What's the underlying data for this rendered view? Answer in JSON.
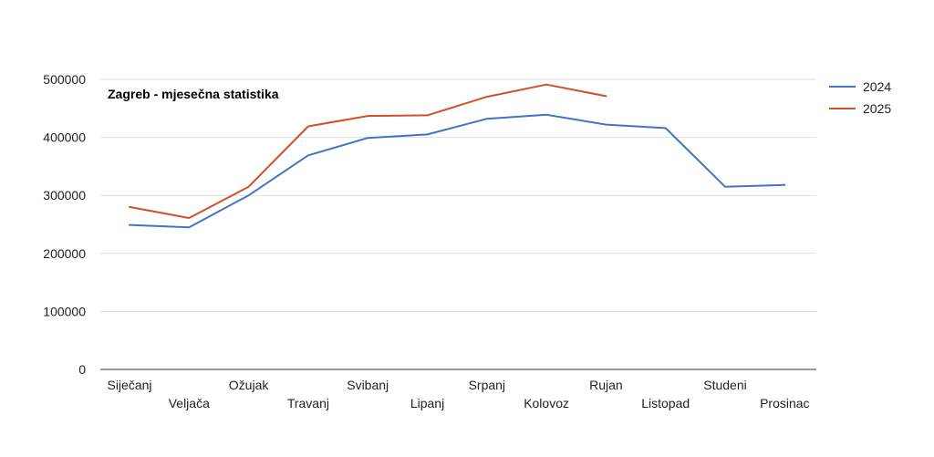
{
  "chart_data": {
    "type": "line",
    "title": "Zagreb - mjesečna statistika",
    "xlabel": "",
    "ylabel": "",
    "categories": [
      "Siječanj",
      "Veljača",
      "Ožujak",
      "Travanj",
      "Svibanj",
      "Lipanj",
      "Srpanj",
      "Kolovoz",
      "Rujan",
      "Listopad",
      "Studeni",
      "Prosinac"
    ],
    "y_ticks": [
      "0",
      "100000",
      "200000",
      "300000",
      "400000",
      "500000"
    ],
    "ylim": [
      0,
      500000
    ],
    "grid": true,
    "legend": "right",
    "series": [
      {
        "name": "2024",
        "color": "#4472c4",
        "values": [
          249000,
          245000,
          300000,
          369000,
          399000,
          405000,
          432000,
          439000,
          422000,
          416000,
          315000,
          318000
        ]
      },
      {
        "name": "2025",
        "color": "#d0502b",
        "values": [
          280000,
          261000,
          315000,
          419000,
          437000,
          438000,
          470000,
          491000,
          471000,
          null,
          null,
          null
        ]
      }
    ]
  }
}
